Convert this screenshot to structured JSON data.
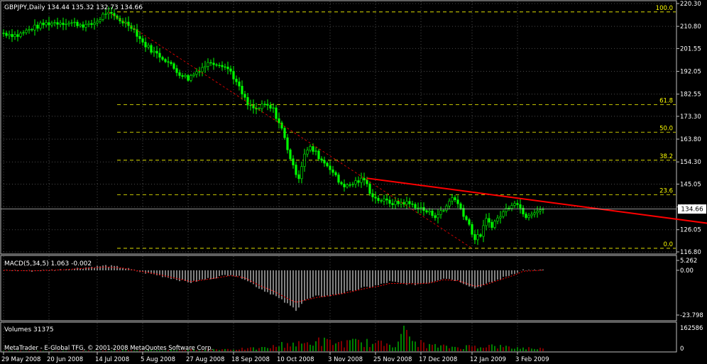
{
  "chart_data": [
    {
      "type": "candlestick",
      "panel": "price",
      "title": "GBPJPY,Daily  134.44 135.32 132.73 134.66",
      "symbol": "GBPJPY",
      "timeframe": "Daily",
      "last_ohlc": {
        "open": 134.44,
        "high": 135.32,
        "low": 132.73,
        "close": 134.66
      },
      "current_price_label": "134.66",
      "ylim": [
        116.8,
        220.3
      ],
      "y_ticks": [
        "220.30",
        "210.80",
        "201.55",
        "192.05",
        "182.55",
        "173.30",
        "163.80",
        "154.30",
        "145.05",
        "135.55",
        "126.05",
        "116.80"
      ],
      "x_ticks": [
        "29 May 2008",
        "20 Jun 2008",
        "14 Jul 2008",
        "5 Aug 2008",
        "27 Aug 2008",
        "18 Sep 2008",
        "10 Oct 2008",
        "3 Nov 2008",
        "25 Nov 2008",
        "17 Dec 2008",
        "12 Jan 2009",
        "3 Feb 2009"
      ],
      "x_tick_index": [
        0,
        16,
        33,
        49,
        65,
        81,
        97,
        115,
        131,
        147,
        165,
        181
      ],
      "grid": true,
      "bull_color": "#00ff00",
      "bear_color": "#00ff00",
      "fibonacci": {
        "color": "#ffff00",
        "levels": [
          {
            "label": "100.0",
            "price": 216.8
          },
          {
            "label": "61.8",
            "price": 178.2
          },
          {
            "label": "50.0",
            "price": 166.7
          },
          {
            "label": "38.2",
            "price": 155.0
          },
          {
            "label": "23.6",
            "price": 140.6
          },
          {
            "label": "0.0",
            "price": 118.3
          }
        ]
      },
      "trendline": {
        "color": "#ff0000",
        "from": {
          "bar": 128,
          "price": 147.5
        },
        "to": {
          "bar": 259,
          "price": 127.0
        }
      },
      "fib_anchor_line": {
        "color": "#ff0000",
        "from": {
          "bar": 37,
          "price": 216.8
        },
        "to": {
          "bar": 165,
          "price": 118.3
        }
      },
      "close_path": [
        [
          0,
          208
        ],
        [
          5,
          207
        ],
        [
          10,
          210
        ],
        [
          15,
          212
        ],
        [
          20,
          212.5
        ],
        [
          25,
          212
        ],
        [
          30,
          211
        ],
        [
          33,
          213
        ],
        [
          36,
          216.5
        ],
        [
          40,
          214
        ],
        [
          45,
          211
        ],
        [
          49,
          204
        ],
        [
          53,
          200
        ],
        [
          57,
          197
        ],
        [
          61,
          192
        ],
        [
          65,
          189
        ],
        [
          69,
          193
        ],
        [
          73,
          196
        ],
        [
          77,
          195
        ],
        [
          80,
          192
        ],
        [
          83,
          185
        ],
        [
          86,
          178
        ],
        [
          89,
          176
        ],
        [
          92,
          178
        ],
        [
          95,
          176
        ],
        [
          98,
          168
        ],
        [
          100,
          160
        ],
        [
          102,
          152
        ],
        [
          104,
          148
        ],
        [
          106,
          158
        ],
        [
          108,
          160
        ],
        [
          110,
          158
        ],
        [
          112,
          155
        ],
        [
          115,
          152
        ],
        [
          118,
          146
        ],
        [
          121,
          144
        ],
        [
          124,
          146
        ],
        [
          127,
          147
        ],
        [
          129,
          142
        ],
        [
          131,
          139
        ],
        [
          134,
          138
        ],
        [
          138,
          137
        ],
        [
          141,
          137.5
        ],
        [
          145,
          136
        ],
        [
          149,
          133.5
        ],
        [
          152,
          132
        ],
        [
          155,
          134
        ],
        [
          158,
          140
        ],
        [
          161,
          135
        ],
        [
          164,
          128
        ],
        [
          166,
          122
        ],
        [
          168,
          124
        ],
        [
          170,
          130
        ],
        [
          172,
          128
        ],
        [
          175,
          132
        ],
        [
          178,
          136
        ],
        [
          180,
          138
        ],
        [
          182,
          135
        ],
        [
          184,
          132
        ],
        [
          187,
          134
        ],
        [
          190,
          134.66
        ]
      ]
    },
    {
      "type": "bar",
      "panel": "macd",
      "label": "MACD(5,34,5) 1.063 -0.002",
      "ylim": [
        -23.798,
        5.262
      ],
      "y_ticks": [
        "5.262",
        "0.00",
        "-23.798"
      ],
      "histogram_color": "#ffffff",
      "signal_color": "#ff0000",
      "histogram_path": [
        [
          0,
          0
        ],
        [
          10,
          -0.3
        ],
        [
          20,
          0.3
        ],
        [
          30,
          1.6
        ],
        [
          36,
          2.5
        ],
        [
          42,
          1.5
        ],
        [
          48,
          -0.8
        ],
        [
          54,
          -2.5
        ],
        [
          60,
          -4.5
        ],
        [
          66,
          -6.5
        ],
        [
          70,
          -5.0
        ],
        [
          74,
          -4.0
        ],
        [
          80,
          -2.0
        ],
        [
          85,
          -4.5
        ],
        [
          90,
          -9.5
        ],
        [
          95,
          -13
        ],
        [
          100,
          -18
        ],
        [
          103,
          -21
        ],
        [
          106,
          -16
        ],
        [
          110,
          -14
        ],
        [
          115,
          -13.5
        ],
        [
          120,
          -12
        ],
        [
          125,
          -10
        ],
        [
          128,
          -9
        ],
        [
          132,
          -8
        ],
        [
          136,
          -6
        ],
        [
          140,
          -7
        ],
        [
          145,
          -7.5
        ],
        [
          150,
          -6.5
        ],
        [
          155,
          -4
        ],
        [
          160,
          -5.5
        ],
        [
          163,
          -7.5
        ],
        [
          166,
          -9.5
        ],
        [
          170,
          -7.5
        ],
        [
          175,
          -4.5
        ],
        [
          180,
          -1.5
        ],
        [
          183,
          0.3
        ],
        [
          186,
          -0.2
        ],
        [
          190,
          0.3
        ]
      ],
      "signal_path": [
        [
          0,
          0
        ],
        [
          10,
          -0.3
        ],
        [
          20,
          0.2
        ],
        [
          30,
          1.2
        ],
        [
          36,
          1.8
        ],
        [
          42,
          1.2
        ],
        [
          48,
          -0.5
        ],
        [
          54,
          -2.0
        ],
        [
          60,
          -4.0
        ],
        [
          66,
          -6.0
        ],
        [
          70,
          -5.2
        ],
        [
          74,
          -4.3
        ],
        [
          80,
          -2.8
        ],
        [
          85,
          -4.0
        ],
        [
          90,
          -8
        ],
        [
          95,
          -11
        ],
        [
          100,
          -15
        ],
        [
          103,
          -17
        ],
        [
          106,
          -16
        ],
        [
          110,
          -14.5
        ],
        [
          115,
          -13.5
        ],
        [
          120,
          -12.2
        ],
        [
          125,
          -10.5
        ],
        [
          128,
          -9.5
        ],
        [
          132,
          -8.5
        ],
        [
          136,
          -7
        ],
        [
          140,
          -7
        ],
        [
          145,
          -7.2
        ],
        [
          150,
          -6.8
        ],
        [
          155,
          -5
        ],
        [
          160,
          -5.5
        ],
        [
          163,
          -7
        ],
        [
          166,
          -8.5
        ],
        [
          170,
          -7.5
        ],
        [
          175,
          -5
        ],
        [
          180,
          -2.5
        ],
        [
          183,
          -0.5
        ],
        [
          186,
          -0.3
        ],
        [
          190,
          0.1
        ]
      ]
    },
    {
      "type": "bar",
      "panel": "volume",
      "label": "Volumes 31375",
      "ylim": [
        0,
        162586
      ],
      "y_ticks": [
        "162586",
        "0"
      ],
      "up_color": "#00ff00",
      "down_color": "#ff0000",
      "level_path": [
        [
          0,
          0.02
        ],
        [
          20,
          0.02
        ],
        [
          40,
          0.03
        ],
        [
          60,
          0.05
        ],
        [
          70,
          0.08
        ],
        [
          80,
          0.1
        ],
        [
          90,
          0.12
        ],
        [
          95,
          0.2
        ],
        [
          100,
          0.35
        ],
        [
          105,
          0.3
        ],
        [
          110,
          0.45
        ],
        [
          115,
          0.4
        ],
        [
          120,
          0.35
        ],
        [
          125,
          0.4
        ],
        [
          128,
          0.38
        ],
        [
          130,
          0.3
        ],
        [
          135,
          0.35
        ],
        [
          138,
          0.35
        ],
        [
          140,
          0.9
        ],
        [
          145,
          0.4
        ],
        [
          150,
          0.25
        ],
        [
          155,
          0.2
        ],
        [
          160,
          0.18
        ],
        [
          165,
          0.22
        ],
        [
          170,
          0.25
        ],
        [
          175,
          0.2
        ],
        [
          180,
          0.15
        ],
        [
          185,
          0.14
        ],
        [
          190,
          0.12
        ]
      ]
    }
  ],
  "footer": {
    "copyright": "MetaTrader - E-Global TFG, © 2001-2008 MetaQuotes Software Corp."
  }
}
